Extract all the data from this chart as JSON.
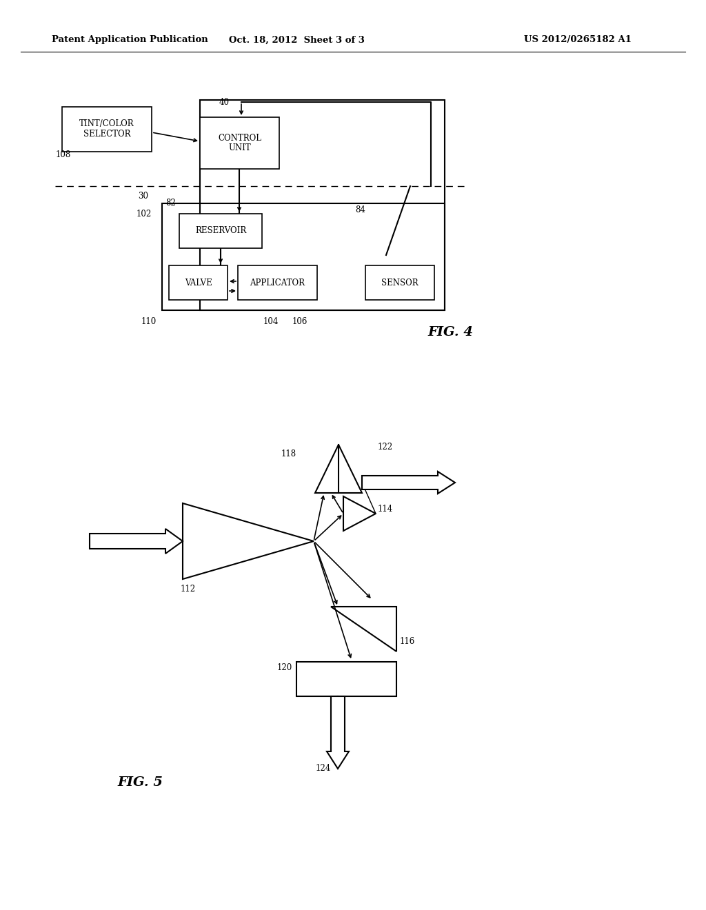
{
  "bg_color": "#ffffff",
  "header_left": "Patent Application Publication",
  "header_mid": "Oct. 18, 2012  Sheet 3 of 3",
  "header_right": "US 2012/0265182 A1",
  "fig4_label": "FIG. 4",
  "fig5_label": "FIG. 5"
}
